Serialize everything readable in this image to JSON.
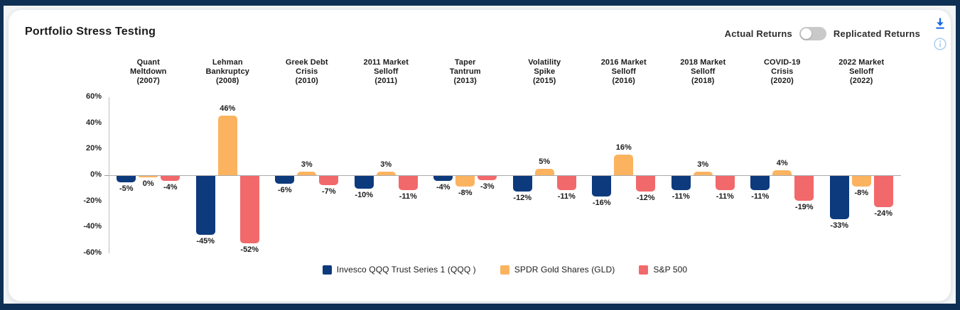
{
  "header": {
    "title": "Portfolio Stress Testing",
    "toggle": {
      "left_label": "Actual Returns",
      "right_label": "Replicated Returns",
      "state": "left"
    }
  },
  "icons": {
    "download_color": "#1B6BE0",
    "info_color": "#B3D0F5"
  },
  "frame_colors": {
    "border": "#0E3054",
    "page_bg": "#F2F4F6",
    "card_bg": "#FFFFFF"
  },
  "chart_data": {
    "type": "bar",
    "title": "Portfolio Stress Testing",
    "categories": [
      [
        "Quant",
        "Meltdown",
        "(2007)"
      ],
      [
        "Lehman",
        "Bankruptcy",
        "(2008)"
      ],
      [
        "Greek Debt",
        "Crisis",
        "(2010)"
      ],
      [
        "2011 Market",
        "Selloff",
        "(2011)"
      ],
      [
        "Taper",
        "Tantrum",
        "(2013)"
      ],
      [
        "Volatility",
        "Spike",
        "(2015)"
      ],
      [
        "2016 Market",
        "Selloff",
        "(2016)"
      ],
      [
        "2018 Market",
        "Selloff",
        "(2018)"
      ],
      [
        "COVID-19",
        "Crisis",
        "(2020)"
      ],
      [
        "2022 Market",
        "Selloff",
        "(2022)"
      ]
    ],
    "series": [
      {
        "name": "Invesco QQQ Trust Series 1 (QQQ )",
        "color": "#0D3A7D",
        "values": [
          -5,
          -45,
          -6,
          -10,
          -4,
          -12,
          -16,
          -11,
          -11,
          -33
        ]
      },
      {
        "name": "SPDR Gold Shares (GLD)",
        "color": "#FBB360",
        "values": [
          0,
          46,
          3,
          3,
          -8,
          5,
          16,
          3,
          4,
          -8
        ]
      },
      {
        "name": "S&P 500",
        "color": "#F2696C",
        "values": [
          -4,
          -52,
          -7,
          -11,
          -3,
          -11,
          -12,
          -11,
          -19,
          -24
        ]
      }
    ],
    "ylim": [
      -60,
      60
    ],
    "yticks": [
      60,
      40,
      20,
      0,
      -20,
      -40,
      -60
    ],
    "ytick_format": "{v}%",
    "value_label_format": "{v}%",
    "grid": false,
    "legend_position": "bottom"
  }
}
